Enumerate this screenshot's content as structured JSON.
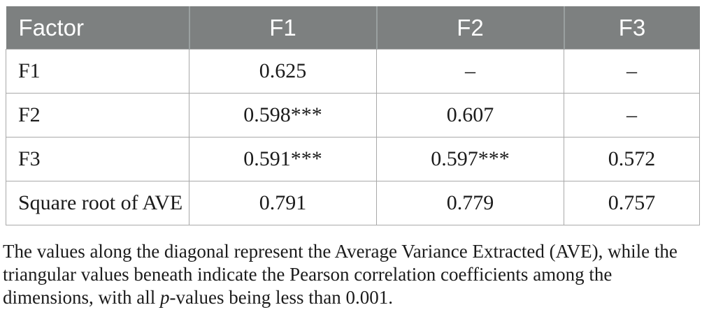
{
  "table": {
    "columns": [
      "Factor",
      "F1",
      "F2",
      "F3"
    ],
    "rows": [
      {
        "label": "F1",
        "f1": "0.625",
        "f2": "–",
        "f3": "–"
      },
      {
        "label": "F2",
        "f1": "0.598***",
        "f2": "0.607",
        "f3": "–"
      },
      {
        "label": "F3",
        "f1": "0.591***",
        "f2": "0.597***",
        "f3": "0.572"
      },
      {
        "label": "Square root of AVE",
        "f1": "0.791",
        "f2": "0.779",
        "f3": "0.757"
      }
    ]
  },
  "footnote": {
    "line1": "The values along the diagonal represent the Average Variance Extracted (AVE), while the",
    "line2": "triangular values beneath indicate the Pearson correlation coefficients among the",
    "line3_pre": "dimensions, with all ",
    "line3_italic": "p",
    "line3_post": "-values being less than 0.001."
  },
  "colors": {
    "header_bg": "#7d8080",
    "header_text": "#ffffff",
    "cell_border": "#a9a9a9",
    "body_text": "#1b1b1b"
  }
}
